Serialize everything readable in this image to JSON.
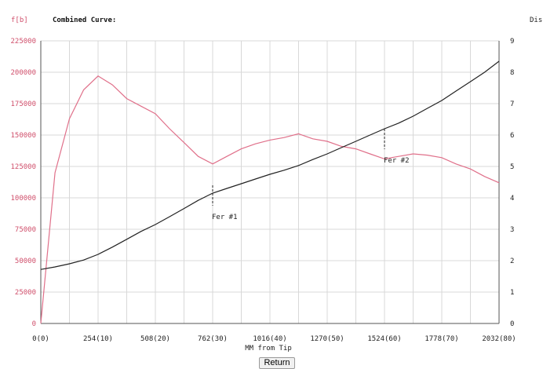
{
  "header": {
    "left_unit": "f[b]",
    "title": "Combined Curve:",
    "right_unit": "Dis"
  },
  "footer": {
    "return_label": "Return"
  },
  "colors": {
    "force": "#e0708a",
    "displacement": "#222222",
    "grid": "#d8d8d8",
    "left_axis_text": "#d0506c"
  },
  "chart_data": {
    "type": "line",
    "title": "Combined Curve:",
    "xlabel": "MM from Tip",
    "ylabel_left": "f[b]",
    "ylabel_right": "Dis",
    "xlim": [
      0,
      2032
    ],
    "ylim_left": [
      0,
      225000
    ],
    "ylim_right": [
      0,
      9
    ],
    "x_ticks": [
      {
        "value": 0,
        "label": "0(0)"
      },
      {
        "value": 254,
        "label": "254(10)"
      },
      {
        "value": 508,
        "label": "508(20)"
      },
      {
        "value": 762,
        "label": "762(30)"
      },
      {
        "value": 1016,
        "label": "1016(40)"
      },
      {
        "value": 1270,
        "label": "1270(50)"
      },
      {
        "value": 1524,
        "label": "1524(60)"
      },
      {
        "value": 1778,
        "label": "1778(70)"
      },
      {
        "value": 2032,
        "label": "2032(80)"
      }
    ],
    "y_left_ticks": [
      0,
      25000,
      50000,
      75000,
      100000,
      125000,
      150000,
      175000,
      200000,
      225000
    ],
    "y_right_ticks": [
      0,
      1,
      2,
      3,
      4,
      5,
      6,
      7,
      8,
      9
    ],
    "grid": true,
    "series": [
      {
        "axis": "left",
        "color": "#e0708a",
        "points": [
          [
            0,
            0
          ],
          [
            63,
            120000
          ],
          [
            127,
            163000
          ],
          [
            190,
            186000
          ],
          [
            254,
            197000
          ],
          [
            317,
            190000
          ],
          [
            381,
            179000
          ],
          [
            444,
            173000
          ],
          [
            508,
            167000
          ],
          [
            571,
            155000
          ],
          [
            635,
            144000
          ],
          [
            698,
            133000
          ],
          [
            762,
            127000
          ],
          [
            825,
            133000
          ],
          [
            889,
            139000
          ],
          [
            952,
            143000
          ],
          [
            1016,
            146000
          ],
          [
            1079,
            148000
          ],
          [
            1143,
            151000
          ],
          [
            1206,
            147000
          ],
          [
            1270,
            145000
          ],
          [
            1333,
            141000
          ],
          [
            1397,
            139000
          ],
          [
            1460,
            135000
          ],
          [
            1524,
            131000
          ],
          [
            1587,
            133000
          ],
          [
            1651,
            135000
          ],
          [
            1714,
            134000
          ],
          [
            1778,
            132000
          ],
          [
            1841,
            127000
          ],
          [
            1905,
            123000
          ],
          [
            1968,
            117000
          ],
          [
            2032,
            112000
          ]
        ]
      },
      {
        "axis": "right",
        "color": "#222222",
        "points": [
          [
            0,
            1.72
          ],
          [
            63,
            1.8
          ],
          [
            127,
            1.9
          ],
          [
            190,
            2.02
          ],
          [
            254,
            2.2
          ],
          [
            317,
            2.43
          ],
          [
            381,
            2.68
          ],
          [
            444,
            2.93
          ],
          [
            508,
            3.15
          ],
          [
            571,
            3.4
          ],
          [
            635,
            3.66
          ],
          [
            698,
            3.92
          ],
          [
            762,
            4.15
          ],
          [
            825,
            4.3
          ],
          [
            889,
            4.45
          ],
          [
            952,
            4.6
          ],
          [
            1016,
            4.75
          ],
          [
            1079,
            4.88
          ],
          [
            1143,
            5.03
          ],
          [
            1206,
            5.22
          ],
          [
            1270,
            5.4
          ],
          [
            1333,
            5.6
          ],
          [
            1397,
            5.8
          ],
          [
            1460,
            6.0
          ],
          [
            1524,
            6.2
          ],
          [
            1587,
            6.38
          ],
          [
            1651,
            6.6
          ],
          [
            1714,
            6.85
          ],
          [
            1778,
            7.1
          ],
          [
            1841,
            7.4
          ],
          [
            1905,
            7.7
          ],
          [
            1968,
            8.0
          ],
          [
            2032,
            8.35
          ]
        ]
      }
    ],
    "markers": [
      {
        "x": 762,
        "y_from": 4.4,
        "y_to": 3.75,
        "label": "Fer #1"
      },
      {
        "x": 1524,
        "y_from": 6.2,
        "y_to": 5.55,
        "label": "Fer #2"
      }
    ]
  }
}
